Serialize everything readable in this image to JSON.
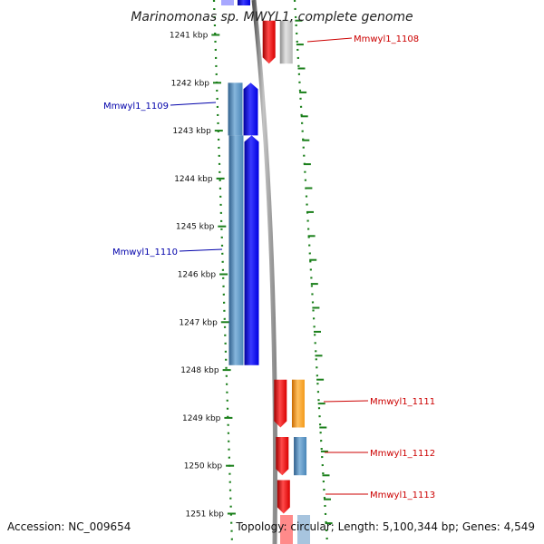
{
  "title": "Marinomonas sp. MWYL1, complete genome",
  "footer": {
    "accession": "Accession: NC_009654",
    "summary": "Topology: circular; Length: 5,100,344 bp; Genes: 4,549"
  },
  "ruler": {
    "color": "#1a7f1a",
    "unit": "kbp",
    "labeled_positions_kbp": [
      1241,
      1242,
      1243,
      1244,
      1245,
      1246,
      1247,
      1248,
      1249,
      1250,
      1251
    ]
  },
  "colors": {
    "backbone": "#8a8a8a",
    "reverse_gene": "#0000ee",
    "reverse_cds": "#4a86b8",
    "forward_gene": "#ee0000",
    "forward_cds_orange": "#f39a1a",
    "forward_cds_blue": "#4a86b8",
    "forward_cds_gray": "#b8b8b8",
    "forward_label": "#cc0000",
    "reverse_label": "#0000aa"
  },
  "genes": [
    {
      "label": "Mmwyl1_1108",
      "strand": "forward",
      "start_kbp": 1240.7,
      "end_kbp": 1241.6,
      "cds": "gray"
    },
    {
      "label": "Mmwyl1_1109",
      "strand": "reverse",
      "start_kbp": 1242.0,
      "end_kbp": 1243.1,
      "cds": "blue"
    },
    {
      "label": "Mmwyl1_1110",
      "strand": "reverse",
      "start_kbp": 1243.1,
      "end_kbp": 1247.9,
      "cds": "blue"
    },
    {
      "label": "Mmwyl1_1111",
      "strand": "forward",
      "start_kbp": 1248.2,
      "end_kbp": 1249.2,
      "cds": "orange"
    },
    {
      "label": "Mmwyl1_1112",
      "strand": "forward",
      "start_kbp": 1249.4,
      "end_kbp": 1250.2,
      "cds": "blue"
    },
    {
      "label": "Mmwyl1_1113",
      "strand": "forward",
      "start_kbp": 1250.3,
      "end_kbp": 1251.0,
      "cds": "none"
    }
  ]
}
